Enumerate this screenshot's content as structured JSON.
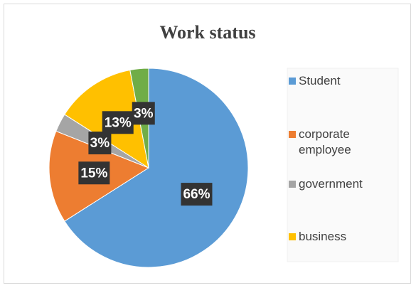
{
  "chart_data": {
    "type": "pie",
    "title": "Work status",
    "categories": [
      "Student",
      "corporate employee",
      "government",
      "business",
      null
    ],
    "values": [
      66,
      15,
      3,
      13,
      3
    ],
    "value_labels": [
      "66%",
      "15%",
      "3%",
      "13%",
      "3%"
    ],
    "colors": [
      "#5b9bd5",
      "#ed7d31",
      "#a5a5a5",
      "#ffc000",
      "#70ad47"
    ],
    "legend": "right"
  }
}
